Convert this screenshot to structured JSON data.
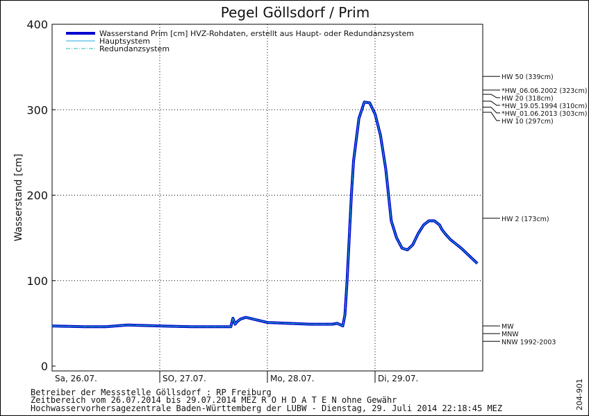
{
  "chart_data": {
    "type": "line",
    "title": "Pegel Göllsdorf / Prim",
    "ylabel": "Wasserstand [cm]",
    "xlabel": "",
    "ylim": [
      0,
      400
    ],
    "xlim": [
      0,
      4
    ],
    "grid": true,
    "legend_position": "top-left",
    "y_ticks": [
      "0",
      "100",
      "200",
      "300",
      "400"
    ],
    "day_labels": [
      {
        "x": 0,
        "label": "Sa, 26.07."
      },
      {
        "x": 1,
        "label": "SO, 27.07."
      },
      {
        "x": 2,
        "label": "Mo, 28.07."
      },
      {
        "x": 3,
        "label": "Di, 29.07."
      }
    ],
    "series": [
      {
        "name": "Wasserstand Prim [cm] HVZ-Rohdaten, erstellt aus Haupt- oder Redundanzsystem",
        "color": "#0000cc",
        "x": [
          0,
          0.3,
          0.5,
          0.7,
          1.0,
          1.3,
          1.5,
          1.66,
          1.68,
          1.7,
          1.72,
          1.75,
          1.8,
          1.9,
          2.0,
          2.2,
          2.4,
          2.6,
          2.65,
          2.7,
          2.72,
          2.74,
          2.76,
          2.78,
          2.8,
          2.85,
          2.9,
          2.95,
          2.98,
          3.0,
          3.05,
          3.1,
          3.15,
          3.2,
          3.25,
          3.3,
          3.35,
          3.4,
          3.45,
          3.5,
          3.55,
          3.6,
          3.62,
          3.65,
          3.7,
          3.75,
          3.8,
          3.85,
          3.9,
          3.95
        ],
        "y": [
          47,
          46,
          46,
          48,
          47,
          46,
          46,
          46,
          56,
          49,
          52,
          55,
          57,
          54,
          51,
          50,
          49,
          49,
          50,
          47,
          60,
          100,
          150,
          200,
          240,
          290,
          309,
          308,
          300,
          295,
          270,
          230,
          170,
          150,
          138,
          136,
          142,
          155,
          165,
          170,
          170,
          165,
          160,
          155,
          148,
          143,
          138,
          132,
          126,
          120
        ]
      },
      {
        "name": "Hauptsystem",
        "color": "#22aadd"
      },
      {
        "name": "Redundanzsystem",
        "color": "#22bbaa"
      }
    ],
    "reference_levels": [
      {
        "label": "HW 50 (339cm)",
        "value": 339
      },
      {
        "label": "*HW_06.06.2002 (323cm)",
        "value": 323
      },
      {
        "label": "HW 20 (318cm)",
        "value": 318
      },
      {
        "label": "*HW_19.05.1994 (310cm)",
        "value": 310
      },
      {
        "label": "*HW_01.06.2013 (303cm)",
        "value": 303
      },
      {
        "label": "HW 10 (297cm)",
        "value": 297
      },
      {
        "label": "HW 2 (173cm)",
        "value": 173
      },
      {
        "label": "MW",
        "value": 47
      },
      {
        "label": "MNW",
        "value": 38
      },
      {
        "label": "NNW 1992-2003",
        "value": 29
      }
    ]
  },
  "footer": {
    "line1": "Betreiber der Messstelle Göllsdorf : RP Freiburg",
    "line2": "Zeitbereich vom 26.07.2014 bis 29.07.2014   MEZ    R O H D A T E N ohne Gewähr",
    "line3": "Hochwasservorhersagezentrale Baden-Württemberg der LUBW - Dienstag, 29. Juli 2014 22:18:45 MEZ"
  },
  "chart_id": "204-901"
}
